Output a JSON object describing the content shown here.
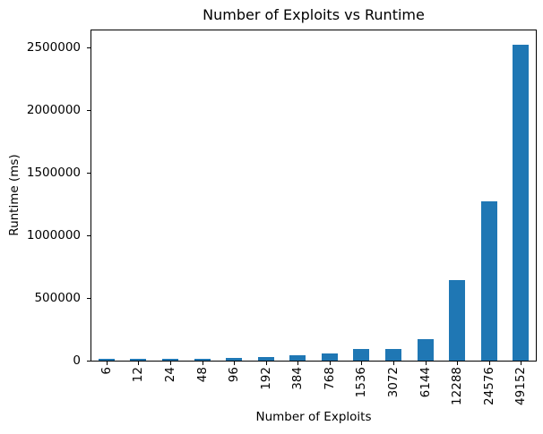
{
  "chart_data": {
    "type": "bar",
    "title": "Number of Exploits vs Runtime",
    "xlabel": "Number of Exploits",
    "ylabel": "Runtime (ms)",
    "categories": [
      "6",
      "12",
      "24",
      "48",
      "96",
      "192",
      "384",
      "768",
      "1536",
      "3072",
      "6144",
      "12288",
      "24576",
      "49152"
    ],
    "values": [
      15000,
      15000,
      16000,
      17000,
      18000,
      30000,
      40000,
      60000,
      95000,
      95000,
      175000,
      640000,
      1275000,
      2525000
    ],
    "yticks": [
      0,
      500000,
      1000000,
      1500000,
      2000000,
      2500000
    ],
    "ylim": [
      0,
      2650000
    ],
    "x_tick_rotation": 90,
    "grid": false,
    "legend_position": "none",
    "bar_color": "#1f77b4",
    "background_color": "#ffffff",
    "text_color": "#000000"
  }
}
